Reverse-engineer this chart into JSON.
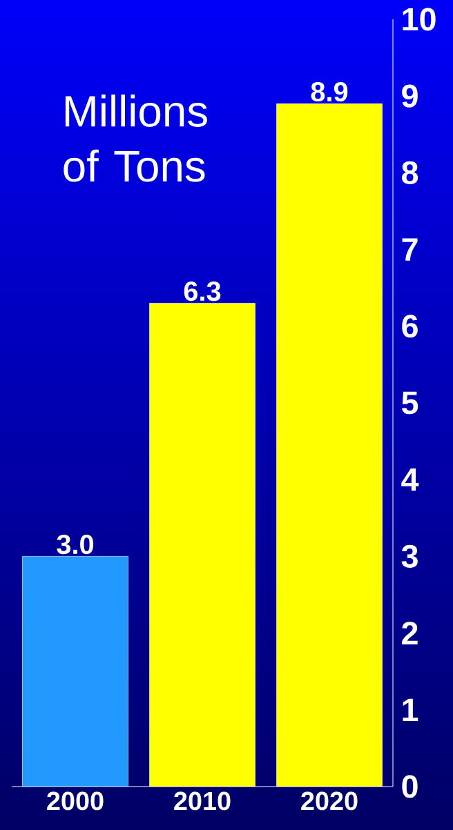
{
  "chart_data": {
    "type": "bar",
    "ylabel": "Millions of Tons",
    "categories": [
      "2000",
      "2010",
      "2020"
    ],
    "values": [
      3.0,
      6.3,
      8.9
    ],
    "colors": [
      "#2299ff",
      "#ffff00",
      "#ffff00"
    ],
    "value_labels": [
      "3.0",
      "6.3",
      "8.9"
    ],
    "ylim": [
      0,
      10
    ],
    "yticks": [
      0,
      1,
      2,
      3,
      4,
      5,
      6,
      7,
      8,
      9,
      10
    ]
  }
}
